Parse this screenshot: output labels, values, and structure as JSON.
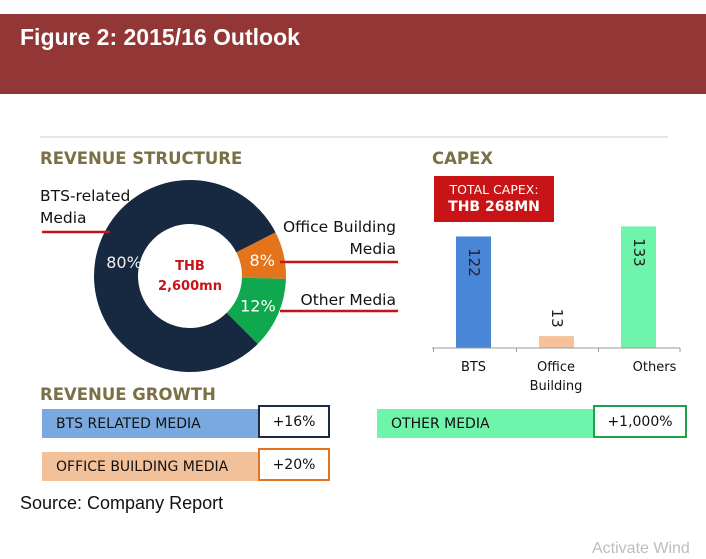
{
  "header": {
    "title": "Figure 2: 2015/16 Outlook"
  },
  "revenue_structure": {
    "title": "REVENUE STRUCTURE",
    "center_line1": "THB",
    "center_line2": "2,600mn",
    "labels": {
      "bts_line1": "BTS-related",
      "bts_line2": "Media",
      "office_line1": "Office Building",
      "office_line2": "Media",
      "other": "Other Media"
    }
  },
  "capex": {
    "title": "CAPEX",
    "total_label": "TOTAL CAPEX:",
    "total_value": "THB 268MN",
    "office_tick_line1": "Office",
    "office_tick_line2": "Building"
  },
  "revenue_growth": {
    "title": "REVENUE GROWTH",
    "items": [
      {
        "label": "BTS RELATED MEDIA",
        "value": "+16%",
        "fill": "#7aa9e0",
        "border": "#1c2c47"
      },
      {
        "label": "OFFICE BUILDING MEDIA",
        "value": "+20%",
        "fill": "#f3c199",
        "border": "#e27422"
      },
      {
        "label": "OTHER MEDIA",
        "value": "+1,000%",
        "fill": "#6ef4ab",
        "border": "#21a049"
      }
    ]
  },
  "source": "Source: Company Report",
  "watermark": "Activate Wind",
  "chart_data": [
    {
      "type": "pie",
      "title": "REVENUE STRUCTURE",
      "categories": [
        "BTS-related Media",
        "Office Building Media",
        "Other Media"
      ],
      "values": [
        80,
        8,
        12
      ],
      "value_labels": [
        "80%",
        "8%",
        "12%"
      ],
      "colors": [
        "#172841",
        "#e4741b",
        "#0fa84f"
      ],
      "center_text": "THB 2,600mn"
    },
    {
      "type": "bar",
      "title": "CAPEX",
      "categories": [
        "BTS",
        "Office Building",
        "Others"
      ],
      "values": [
        122,
        13,
        133
      ],
      "colors": [
        "#4a86d8",
        "#f6c19b",
        "#6ef4ab"
      ],
      "ylim": [
        0,
        140
      ],
      "annotation": "TOTAL CAPEX: THB 268MN"
    }
  ]
}
